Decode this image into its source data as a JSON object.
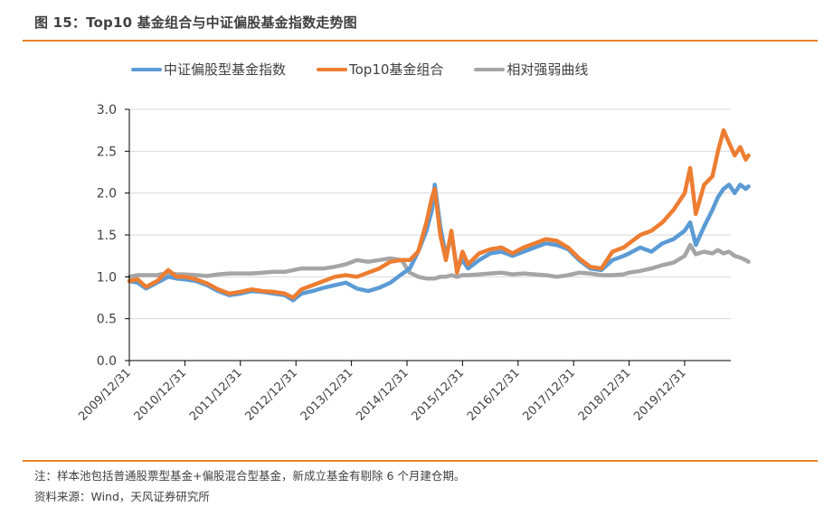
{
  "header": {
    "title": "图 15：Top10 基金组合与中证偏股基金指数走势图"
  },
  "footer": {
    "note": "注：样本池包括普通股票型基金+偏股混合型基金，新成立基金有剔除 6 个月建仓期。",
    "source": "资料来源：Wind，天风证券研究所"
  },
  "colors": {
    "accent_rule": "#e8822e",
    "grid": "#d9d9d9",
    "axis": "#000000"
  },
  "chart_data": {
    "type": "line",
    "title": "Top10 基金组合与中证偏股基金指数走势图",
    "xlabel": "",
    "ylabel": "",
    "ylim": [
      0,
      3.0
    ],
    "yticks": [
      "0.0",
      "0.5",
      "1.0",
      "1.5",
      "2.0",
      "2.5",
      "3.0"
    ],
    "ytick_values": [
      0,
      0.5,
      1.0,
      1.5,
      2.0,
      2.5,
      3.0
    ],
    "xticks": [
      "2009/12/31",
      "2010/12/31",
      "2011/12/31",
      "2012/12/31",
      "2013/12/31",
      "2014/12/31",
      "2015/12/31",
      "2016/12/31",
      "2017/12/31",
      "2018/12/31",
      "2019/12/31"
    ],
    "grid": "horizontal",
    "legend_position": "top",
    "x": [
      2010.0,
      2010.15,
      2010.3,
      2010.5,
      2010.7,
      2010.85,
      2011.0,
      2011.2,
      2011.4,
      2011.6,
      2011.8,
      2012.0,
      2012.2,
      2012.4,
      2012.6,
      2012.8,
      2012.95,
      2013.1,
      2013.3,
      2013.5,
      2013.7,
      2013.9,
      2014.1,
      2014.3,
      2014.5,
      2014.7,
      2014.9,
      2015.05,
      2015.2,
      2015.35,
      2015.45,
      2015.5,
      2015.6,
      2015.7,
      2015.8,
      2015.9,
      2016.0,
      2016.1,
      2016.3,
      2016.5,
      2016.7,
      2016.9,
      2017.1,
      2017.3,
      2017.5,
      2017.7,
      2017.9,
      2018.1,
      2018.3,
      2018.5,
      2018.7,
      2018.9,
      2019.0,
      2019.2,
      2019.4,
      2019.6,
      2019.8,
      2020.0,
      2020.1,
      2020.2,
      2020.35,
      2020.5,
      2020.6,
      2020.7,
      2020.8,
      2020.9,
      2021.0,
      2021.1,
      2021.15
    ],
    "series": [
      {
        "name": "中证偏股型基金指数",
        "color": "#5b9bd5",
        "values": [
          0.95,
          0.93,
          0.86,
          0.93,
          1.0,
          0.98,
          0.97,
          0.95,
          0.9,
          0.83,
          0.78,
          0.8,
          0.83,
          0.82,
          0.8,
          0.78,
          0.72,
          0.8,
          0.83,
          0.87,
          0.9,
          0.93,
          0.86,
          0.83,
          0.87,
          0.93,
          1.03,
          1.1,
          1.3,
          1.55,
          1.8,
          2.1,
          1.6,
          1.25,
          1.5,
          1.1,
          1.2,
          1.1,
          1.2,
          1.28,
          1.3,
          1.25,
          1.3,
          1.35,
          1.4,
          1.38,
          1.33,
          1.2,
          1.1,
          1.08,
          1.2,
          1.25,
          1.28,
          1.35,
          1.3,
          1.4,
          1.45,
          1.55,
          1.65,
          1.38,
          1.6,
          1.8,
          1.95,
          2.05,
          2.1,
          2.0,
          2.1,
          2.05,
          2.08
        ]
      },
      {
        "name": "Top10基金组合",
        "color": "#ed7d31",
        "values": [
          0.95,
          0.97,
          0.88,
          0.95,
          1.08,
          1.0,
          1.0,
          0.97,
          0.92,
          0.85,
          0.8,
          0.82,
          0.85,
          0.83,
          0.82,
          0.8,
          0.75,
          0.85,
          0.9,
          0.95,
          1.0,
          1.02,
          1.0,
          1.05,
          1.1,
          1.18,
          1.2,
          1.2,
          1.3,
          1.65,
          1.95,
          2.05,
          1.5,
          1.2,
          1.55,
          1.05,
          1.3,
          1.15,
          1.28,
          1.33,
          1.35,
          1.28,
          1.35,
          1.4,
          1.45,
          1.43,
          1.35,
          1.22,
          1.12,
          1.1,
          1.3,
          1.35,
          1.4,
          1.5,
          1.55,
          1.65,
          1.8,
          2.0,
          2.3,
          1.75,
          2.1,
          2.2,
          2.5,
          2.75,
          2.6,
          2.45,
          2.55,
          2.4,
          2.45
        ]
      },
      {
        "name": "相对强弱曲线",
        "color": "#a5a5a5",
        "values": [
          1.0,
          1.02,
          1.02,
          1.02,
          1.05,
          1.03,
          1.03,
          1.02,
          1.01,
          1.03,
          1.04,
          1.04,
          1.04,
          1.05,
          1.06,
          1.06,
          1.08,
          1.1,
          1.1,
          1.1,
          1.12,
          1.15,
          1.2,
          1.18,
          1.2,
          1.22,
          1.2,
          1.05,
          1.0,
          0.98,
          0.98,
          0.98,
          1.0,
          1.0,
          1.02,
          1.0,
          1.02,
          1.02,
          1.03,
          1.04,
          1.05,
          1.03,
          1.04,
          1.03,
          1.02,
          1.0,
          1.02,
          1.05,
          1.04,
          1.02,
          1.02,
          1.03,
          1.05,
          1.07,
          1.1,
          1.14,
          1.17,
          1.25,
          1.38,
          1.27,
          1.3,
          1.28,
          1.32,
          1.28,
          1.3,
          1.25,
          1.23,
          1.2,
          1.18
        ]
      }
    ]
  }
}
